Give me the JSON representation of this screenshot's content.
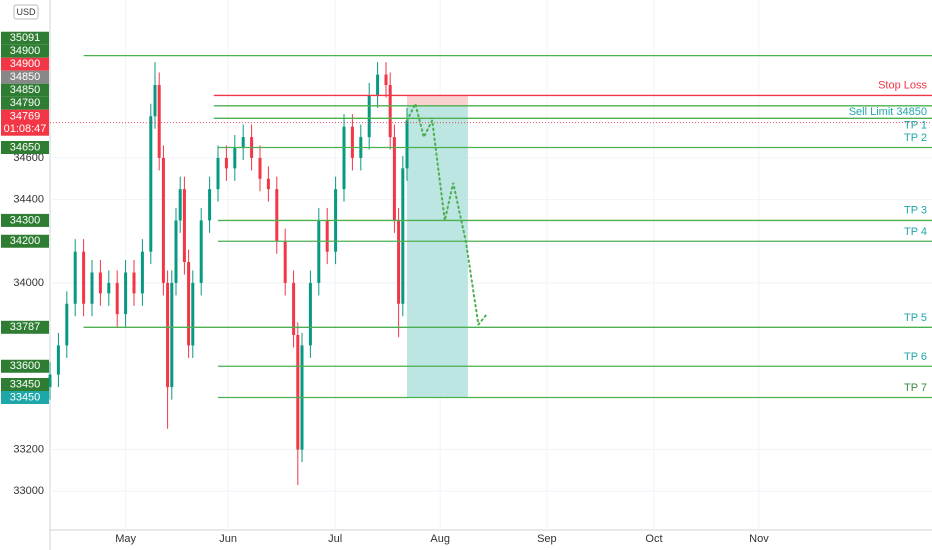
{
  "chart_data": {
    "type": "candlestick",
    "currency": "USD",
    "xlim": [
      0,
      210
    ],
    "ylim": [
      32814,
      35358
    ],
    "yticks": [
      34600,
      34400,
      34000,
      33200,
      33000
    ],
    "xticks": [
      {
        "value": 18,
        "label": "May"
      },
      {
        "value": 42.4,
        "label": "Jun"
      },
      {
        "value": 67.9,
        "label": "Jul"
      },
      {
        "value": 92.9,
        "label": "Aug"
      },
      {
        "value": 118.3,
        "label": "Sep"
      },
      {
        "value": 143.8,
        "label": "Oct"
      },
      {
        "value": 168.8,
        "label": "Nov"
      }
    ],
    "grid": true,
    "up_color": "#089981",
    "down_color": "#f23645",
    "x": [
      0,
      2,
      4,
      6,
      8,
      10,
      12,
      14,
      16,
      18,
      20,
      22,
      24,
      25,
      26,
      27,
      28,
      29,
      30,
      31,
      32,
      33,
      34,
      36,
      38,
      40,
      42,
      44,
      46,
      48,
      50,
      52,
      54,
      56,
      58,
      59,
      60,
      62,
      64,
      66,
      68,
      70,
      72,
      74,
      76,
      78,
      80,
      81,
      82,
      83,
      84,
      85
    ],
    "open": [
      33500,
      33560,
      33700,
      33900,
      34150,
      33900,
      34050,
      33950,
      34000,
      33850,
      34050,
      33950,
      34150,
      34800,
      34950,
      34600,
      34000,
      33500,
      34000,
      34300,
      34450,
      34100,
      33700,
      34000,
      34300,
      34450,
      34600,
      34550,
      34650,
      34700,
      34600,
      34500,
      34450,
      34200,
      34000,
      33750,
      33200,
      33700,
      34000,
      34300,
      34150,
      34450,
      34750,
      34600,
      34700,
      34900,
      35000,
      34950,
      34700,
      34300,
      33900,
      34550
    ],
    "high": [
      33620,
      33760,
      33960,
      34210,
      34210,
      34110,
      34110,
      34060,
      34060,
      34110,
      34110,
      34210,
      34860,
      35060,
      35010,
      34660,
      34060,
      34060,
      34360,
      34510,
      34510,
      34160,
      34060,
      34360,
      34510,
      34660,
      34660,
      34710,
      34760,
      34760,
      34660,
      34560,
      34510,
      34260,
      34060,
      33810,
      33760,
      34060,
      34360,
      34360,
      34510,
      34810,
      34810,
      34760,
      34960,
      35060,
      35060,
      35010,
      34760,
      34360,
      34610,
      34840
    ],
    "low": [
      33440,
      33500,
      33640,
      33840,
      33840,
      33840,
      33890,
      33890,
      33790,
      33790,
      33890,
      33890,
      34090,
      34740,
      34540,
      33940,
      33300,
      33440,
      33940,
      34240,
      34040,
      33640,
      33640,
      33940,
      34240,
      34390,
      34490,
      34490,
      34590,
      34540,
      34440,
      34390,
      34140,
      33940,
      33690,
      33030,
      33140,
      33640,
      33940,
      34090,
      34090,
      34390,
      34540,
      34540,
      34640,
      34840,
      34890,
      34640,
      34240,
      33740,
      33840,
      34490
    ],
    "close": [
      33560,
      33700,
      33900,
      34150,
      33900,
      34050,
      33950,
      34000,
      33850,
      34050,
      33950,
      34150,
      34800,
      34950,
      34600,
      34000,
      33500,
      34000,
      34300,
      34450,
      34100,
      33700,
      34000,
      34300,
      34450,
      34600,
      34550,
      34650,
      34700,
      34600,
      34500,
      34450,
      34200,
      34000,
      33750,
      33200,
      33700,
      34000,
      34300,
      34150,
      34450,
      34750,
      34600,
      34700,
      34900,
      35000,
      34950,
      34700,
      34300,
      33900,
      34550,
      34780
    ],
    "current_price": 34769,
    "countdown": "01:08:47",
    "levels": [
      {
        "value": 35091,
        "color": "#4caf50",
        "from": 8
      },
      {
        "value": 34900,
        "color": "#f23645",
        "from": 39
      },
      {
        "value": 34850,
        "color": "#4caf50",
        "from": 39
      },
      {
        "value": 34790,
        "color": "#4caf50",
        "from": 39
      },
      {
        "value": 34650,
        "color": "#4caf50",
        "from": 40
      },
      {
        "value": 34300,
        "color": "#4caf50",
        "from": 40
      },
      {
        "value": 34200,
        "color": "#4caf50",
        "from": 40
      },
      {
        "value": 33787,
        "color": "#4caf50",
        "from": 8
      },
      {
        "value": 33600,
        "color": "#4caf50",
        "from": 40
      },
      {
        "value": 33450,
        "color": "#4caf50",
        "from": 40
      }
    ],
    "annotations": [
      {
        "text": "Stop Loss",
        "value": 34946,
        "color": "#f23645"
      },
      {
        "text": "Sell Limit 34850",
        "value": 34821,
        "color": "#1ea7a9"
      },
      {
        "text": "TP 1",
        "value": 34754,
        "color": "#1ea7a9"
      },
      {
        "text": "TP 2",
        "value": 34696,
        "color": "#1ea7a9"
      },
      {
        "text": "TP 3",
        "value": 34346,
        "color": "#1ea7a9"
      },
      {
        "text": "TP 4",
        "value": 34245,
        "color": "#1ea7a9"
      },
      {
        "text": "TP 5",
        "value": 33832,
        "color": "#1ea7a9"
      },
      {
        "text": "TP 6",
        "value": 33645,
        "color": "#1ea7a9"
      },
      {
        "text": "TP 7",
        "value": 33496,
        "color": "#388e3c"
      }
    ],
    "zones": [
      {
        "x": [
          85,
          99.5
        ],
        "y": [
          34900,
          34850
        ],
        "color": "#f8c9c6"
      },
      {
        "x": [
          85,
          99.5
        ],
        "y": [
          34850,
          33450
        ],
        "color": "#b2e0dc"
      }
    ],
    "projection": {
      "x": [
        85,
        87,
        89,
        91,
        94,
        96,
        99,
        102,
        104
      ],
      "values": [
        34780,
        34860,
        34700,
        34780,
        34300,
        34480,
        34200,
        33800,
        33850
      ],
      "color": "#4caf50"
    },
    "price_labels": [
      {
        "value": 35091,
        "color": "#2e7d32"
      },
      {
        "value": 34900,
        "color": "#2e7d32"
      },
      {
        "value": 34900,
        "color": "#f23645"
      },
      {
        "value": 34850,
        "color": "#888888"
      },
      {
        "value": 34850,
        "color": "#2e7d32"
      },
      {
        "value": 34790,
        "color": "#2e7d32"
      },
      {
        "value": 34769,
        "color": "#f23645"
      },
      {
        "value": 34650,
        "color": "#2e7d32"
      },
      {
        "value": 34300,
        "color": "#2e7d32"
      },
      {
        "value": 34200,
        "color": "#2e7d32"
      },
      {
        "value": 33787,
        "color": "#2e7d32"
      },
      {
        "value": 33600,
        "color": "#2e7d32"
      },
      {
        "value": 33450,
        "color": "#2e7d32"
      },
      {
        "value": 33450,
        "color": "#1ea7a9"
      }
    ]
  }
}
